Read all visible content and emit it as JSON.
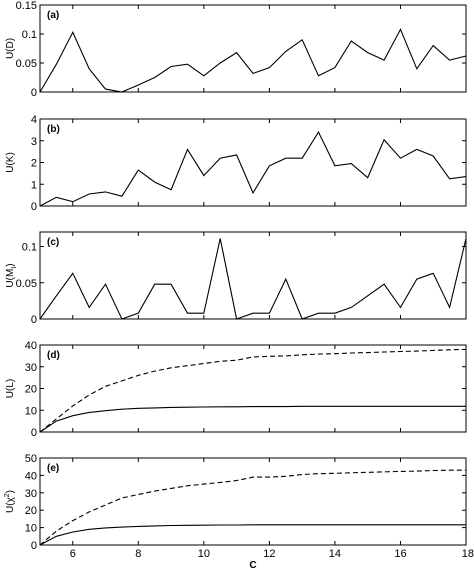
{
  "chart_data": [
    {
      "type": "line",
      "panel_label": "(a)",
      "ylabel": "U(D)",
      "xlim": [
        5,
        18
      ],
      "ylim": [
        0,
        0.15
      ],
      "yticks": [
        0,
        0.05,
        0.1,
        0.15
      ],
      "ytick_labels": [
        "0",
        "0.05",
        "0.1",
        "0.15"
      ],
      "x": [
        5,
        5.5,
        6,
        6.5,
        7,
        7.5,
        8,
        8.5,
        9,
        9.5,
        10,
        10.5,
        11,
        11.5,
        12,
        12.5,
        13,
        13.5,
        14,
        14.5,
        15,
        15.5,
        16,
        16.5,
        17,
        17.5,
        18
      ],
      "series": [
        {
          "style": "solid",
          "values": [
            0,
            0.048,
            0.103,
            0.04,
            0.005,
            0,
            0.012,
            0.025,
            0.044,
            0.048,
            0.028,
            0.05,
            0.068,
            0.032,
            0.042,
            0.07,
            0.09,
            0.028,
            0.042,
            0.088,
            0.068,
            0.055,
            0.108,
            0.04,
            0.08,
            0.055,
            0.062
          ]
        }
      ]
    },
    {
      "type": "line",
      "panel_label": "(b)",
      "ylabel": "U(K)",
      "xlim": [
        5,
        18
      ],
      "ylim": [
        0,
        4
      ],
      "yticks": [
        0,
        1,
        2,
        3,
        4
      ],
      "ytick_labels": [
        "0",
        "1",
        "2",
        "3",
        "4"
      ],
      "x": [
        5,
        5.5,
        6,
        6.5,
        7,
        7.5,
        8,
        8.5,
        9,
        9.5,
        10,
        10.5,
        11,
        11.5,
        12,
        12.5,
        13,
        13.5,
        14,
        14.5,
        15,
        15.5,
        16,
        16.5,
        17,
        17.5,
        18
      ],
      "series": [
        {
          "style": "solid",
          "values": [
            0,
            0.4,
            0.2,
            0.55,
            0.65,
            0.45,
            1.65,
            1.1,
            0.75,
            2.6,
            1.4,
            2.2,
            2.35,
            0.6,
            1.85,
            2.2,
            2.2,
            3.4,
            1.85,
            1.95,
            1.3,
            3.05,
            2.2,
            2.6,
            2.3,
            1.25,
            1.35
          ]
        }
      ]
    },
    {
      "type": "line",
      "panel_label": "(c)",
      "ylabel": "U(M",
      "ylabel_sub": "I",
      "ylabel_end": ")",
      "xlim": [
        5,
        18
      ],
      "ylim": [
        0,
        0.12
      ],
      "yticks": [
        0,
        0.05,
        0.1
      ],
      "ytick_labels": [
        "0",
        "0.05",
        "0.1"
      ],
      "x": [
        5,
        5.5,
        6,
        6.5,
        7,
        7.5,
        8,
        8.5,
        9,
        9.5,
        10,
        10.5,
        11,
        11.5,
        12,
        12.5,
        13,
        13.5,
        14,
        14.5,
        15,
        15.5,
        16,
        16.5,
        17,
        17.5,
        18
      ],
      "series": [
        {
          "style": "solid",
          "values": [
            0,
            0.032,
            0.063,
            0.016,
            0.048,
            0,
            0.008,
            0.048,
            0.048,
            0.008,
            0.008,
            0.111,
            0,
            0.008,
            0.008,
            0.055,
            0,
            0.008,
            0.008,
            0.016,
            0.032,
            0.048,
            0.016,
            0.055,
            0.063,
            0.016,
            0.111
          ]
        }
      ]
    },
    {
      "type": "line",
      "panel_label": "(d)",
      "ylabel": "U(L)",
      "xlim": [
        5,
        18
      ],
      "ylim": [
        0,
        40
      ],
      "yticks": [
        0,
        10,
        20,
        30,
        40
      ],
      "ytick_labels": [
        "0",
        "10",
        "20",
        "30",
        "40"
      ],
      "x": [
        5,
        5.5,
        6,
        6.5,
        7,
        7.5,
        8,
        8.5,
        9,
        9.5,
        10,
        10.5,
        11,
        11.5,
        12,
        12.5,
        13,
        13.5,
        14,
        14.5,
        15,
        15.5,
        16,
        16.5,
        17,
        17.5,
        18
      ],
      "series": [
        {
          "style": "solid",
          "values": [
            0,
            5,
            7.5,
            9,
            9.8,
            10.5,
            10.9,
            11.1,
            11.3,
            11.4,
            11.5,
            11.6,
            11.6,
            11.7,
            11.7,
            11.7,
            11.8,
            11.8,
            11.8,
            11.8,
            11.8,
            11.8,
            11.8,
            11.8,
            11.8,
            11.8,
            11.8
          ]
        },
        {
          "style": "dashed",
          "values": [
            0,
            6,
            12,
            17,
            21,
            23.5,
            26,
            28,
            29.5,
            30.5,
            31.5,
            32.5,
            33,
            34.5,
            34.8,
            35,
            35.5,
            35.8,
            36,
            36.3,
            36.5,
            36.8,
            37,
            37.2,
            37.5,
            37.8,
            38
          ]
        }
      ]
    },
    {
      "type": "line",
      "panel_label": "(e)",
      "ylabel": "U(χ",
      "ylabel_sup": "2",
      "ylabel_end": ")",
      "xlabel": "C",
      "xlim": [
        5,
        18
      ],
      "ylim": [
        0,
        50
      ],
      "yticks": [
        0,
        10,
        20,
        30,
        40,
        50
      ],
      "ytick_labels": [
        "0",
        "10",
        "20",
        "30",
        "40",
        "50"
      ],
      "xticks": [
        6,
        8,
        10,
        12,
        14,
        16,
        18
      ],
      "xtick_labels": [
        "6",
        "8",
        "10",
        "12",
        "14",
        "16",
        "18"
      ],
      "x": [
        5,
        5.5,
        6,
        6.5,
        7,
        7.5,
        8,
        8.5,
        9,
        9.5,
        10,
        10.5,
        11,
        11.5,
        12,
        12.5,
        13,
        13.5,
        14,
        14.5,
        15,
        15.5,
        16,
        16.5,
        17,
        17.5,
        18
      ],
      "series": [
        {
          "style": "solid",
          "values": [
            0,
            5,
            7.5,
            9,
            9.8,
            10.3,
            10.7,
            11,
            11.2,
            11.3,
            11.4,
            11.5,
            11.5,
            11.6,
            11.6,
            11.6,
            11.6,
            11.6,
            11.6,
            11.6,
            11.6,
            11.6,
            11.6,
            11.6,
            11.6,
            11.6,
            11.6
          ]
        },
        {
          "style": "dashed",
          "values": [
            0,
            8,
            14,
            19,
            23,
            27,
            29,
            31,
            32.5,
            34,
            35,
            36,
            37,
            39,
            39,
            39.5,
            40.5,
            41,
            41.2,
            41.5,
            41.8,
            42,
            42.3,
            42.5,
            42.8,
            43,
            43
          ]
        }
      ]
    }
  ]
}
